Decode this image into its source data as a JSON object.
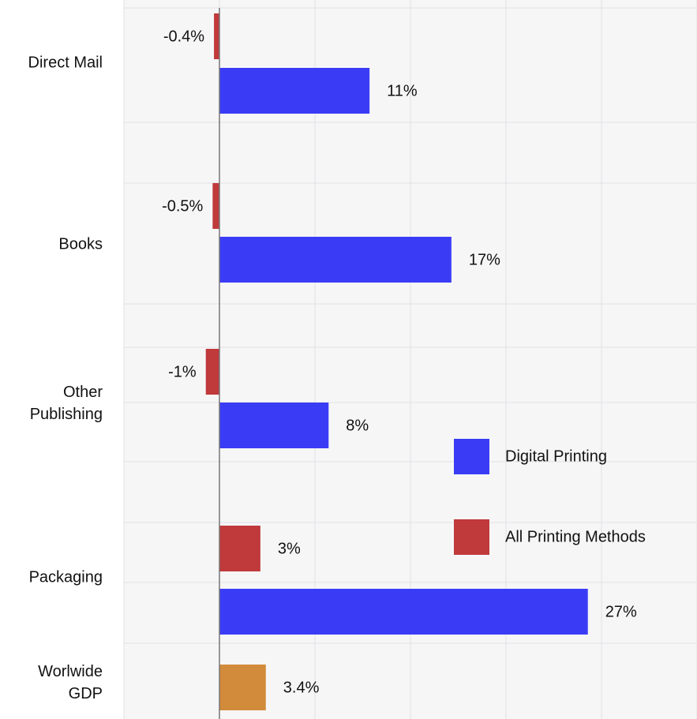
{
  "chart_data": {
    "type": "hbar",
    "categories": [
      "Direct Mail",
      "Books",
      "Other\nPublishing",
      "Packaging",
      "Worlwide\nGDP"
    ],
    "series": [
      {
        "name": "All Printing Methods",
        "color": "#c0393b",
        "values": [
          -0.4,
          -0.5,
          -1,
          3,
          null
        ],
        "value_labels": [
          "-0.4%",
          "-0.5%",
          "-1%",
          "3%",
          null
        ]
      },
      {
        "name": "Digital Printing",
        "color": "#3a3cf5",
        "values": [
          11,
          17,
          8,
          27,
          null
        ],
        "value_labels": [
          "11%",
          "17%",
          "8%",
          "27%",
          null
        ]
      },
      {
        "color": "#d18b3a",
        "values": [
          null,
          null,
          null,
          null,
          3.4
        ],
        "value_labels": [
          null,
          null,
          null,
          null,
          "3.4%"
        ]
      }
    ],
    "xlim": [
      -7,
      35
    ],
    "xticks": [
      -7,
      0,
      7,
      14,
      21,
      28,
      35
    ],
    "grid": true,
    "legend": "center-right"
  }
}
